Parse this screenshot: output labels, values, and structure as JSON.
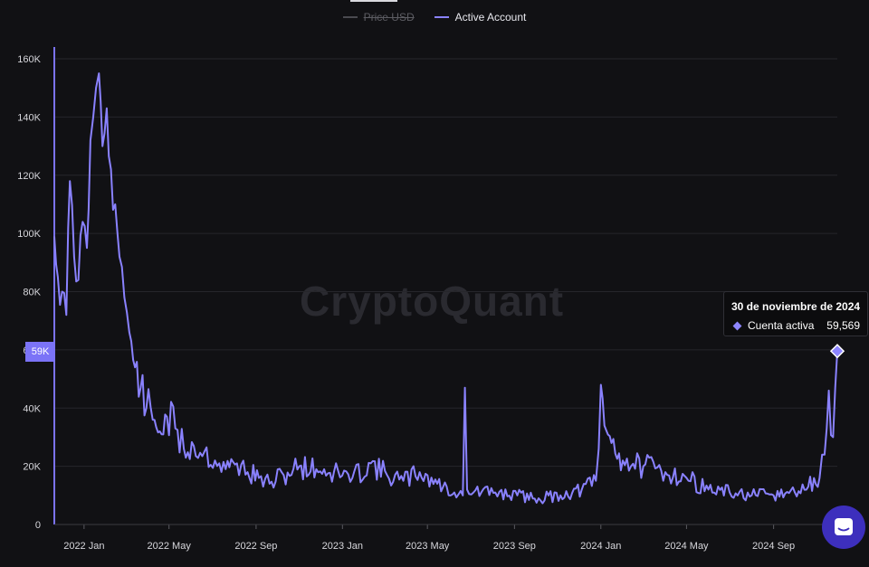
{
  "legend": {
    "items": [
      {
        "label": "Price USD",
        "color": "#4a4a50",
        "enabled": false
      },
      {
        "label": "Active Account",
        "color": "#8a82ff",
        "enabled": true
      }
    ]
  },
  "watermark": "CryptoQuant",
  "tooltip": {
    "date": "30 de noviembre de 2024",
    "series_label": "Cuenta activa",
    "value": "59,569"
  },
  "y_axis_badge": "59K",
  "chat_button": {
    "icon": "chat-icon"
  },
  "chart_data": {
    "type": "line",
    "title": "",
    "xlabel": "",
    "ylabel": "",
    "grid": true,
    "x_range": [
      "2021-11-20",
      "2024-11-30"
    ],
    "ylim": [
      0,
      160000
    ],
    "y_ticks": [
      0,
      20000,
      40000,
      60000,
      80000,
      100000,
      120000,
      140000,
      160000
    ],
    "y_tick_labels": [
      "0",
      "20K",
      "40K",
      "60K",
      "80K",
      "100K",
      "120K",
      "140K",
      "160K"
    ],
    "x_ticks": [
      "2022-01-01",
      "2022-05-01",
      "2022-09-01",
      "2023-01-01",
      "2023-05-01",
      "2023-09-01",
      "2024-01-01",
      "2024-05-01",
      "2024-09-01"
    ],
    "x_tick_labels": [
      "2022 Jan",
      "2022 May",
      "2022 Sep",
      "2023 Jan",
      "2023 May",
      "2023 Sep",
      "2024 Jan",
      "2024 May",
      "2024 Sep"
    ],
    "series": [
      {
        "name": "Active Account",
        "color": "#8a82ff",
        "x": [
          "2021-11-20",
          "2021-11-25",
          "2021-12-01",
          "2021-12-07",
          "2021-12-12",
          "2021-12-18",
          "2021-12-24",
          "2021-12-30",
          "2022-01-05",
          "2022-01-10",
          "2022-01-14",
          "2022-01-18",
          "2022-01-22",
          "2022-01-27",
          "2022-02-02",
          "2022-02-08",
          "2022-02-14",
          "2022-02-20",
          "2022-02-27",
          "2022-03-06",
          "2022-03-14",
          "2022-03-22",
          "2022-03-30",
          "2022-04-08",
          "2022-04-18",
          "2022-04-28",
          "2022-05-10",
          "2022-05-22",
          "2022-06-05",
          "2022-06-20",
          "2022-07-05",
          "2022-07-20",
          "2022-08-05",
          "2022-08-20",
          "2022-09-05",
          "2022-09-20",
          "2022-10-10",
          "2022-11-01",
          "2022-11-25",
          "2022-12-20",
          "2023-01-15",
          "2023-02-10",
          "2023-03-05",
          "2023-03-28",
          "2023-04-20",
          "2023-05-15",
          "2023-06-08",
          "2023-06-20",
          "2023-06-23",
          "2023-06-26",
          "2023-07-05",
          "2023-08-05",
          "2023-09-05",
          "2023-10-05",
          "2023-11-05",
          "2023-12-05",
          "2023-12-25",
          "2023-12-29",
          "2024-01-01",
          "2024-01-06",
          "2024-01-16",
          "2024-02-01",
          "2024-03-01",
          "2024-04-01",
          "2024-05-01",
          "2024-06-01",
          "2024-07-01",
          "2024-08-01",
          "2024-09-01",
          "2024-10-01",
          "2024-10-20",
          "2024-11-05",
          "2024-11-12",
          "2024-11-18",
          "2024-11-24",
          "2024-11-30"
        ],
        "values": [
          99000,
          85000,
          80000,
          72000,
          118000,
          92000,
          84000,
          104000,
          95000,
          132000,
          140000,
          150000,
          155000,
          130000,
          143000,
          122000,
          110000,
          92000,
          78000,
          66000,
          54000,
          47000,
          40000,
          36000,
          32000,
          37000,
          33000,
          26000,
          27000,
          25000,
          22000,
          19000,
          21000,
          18000,
          16000,
          14000,
          17000,
          20000,
          19000,
          18000,
          16000,
          21000,
          17000,
          15000,
          18000,
          14000,
          11000,
          10000,
          47000,
          12000,
          11000,
          11000,
          10000,
          9000,
          10000,
          12000,
          15000,
          26000,
          48000,
          34000,
          28000,
          22000,
          20000,
          18000,
          16000,
          12000,
          11000,
          10000,
          10000,
          11000,
          13000,
          16000,
          24000,
          46000,
          30000,
          59569
        ]
      }
    ],
    "highlight": {
      "x": "2024-11-30",
      "value": 59569
    }
  }
}
